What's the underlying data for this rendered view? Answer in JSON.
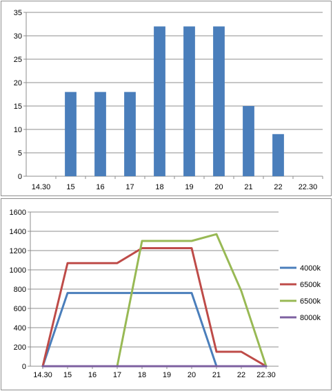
{
  "chart_data": [
    {
      "type": "bar",
      "categories": [
        "14.30",
        "15",
        "16",
        "17",
        "18",
        "19",
        "20",
        "21",
        "22",
        "22.30"
      ],
      "values": [
        0,
        18,
        18,
        18,
        32,
        32,
        32,
        15,
        9,
        0
      ],
      "ylim": [
        0,
        35
      ],
      "yticks": [
        0,
        5,
        10,
        15,
        20,
        25,
        30,
        35
      ],
      "grid": true,
      "colors": {
        "bar": "#4a7ebb",
        "grid": "#8c8c8c",
        "axis": "#8c8c8c"
      }
    },
    {
      "type": "line",
      "x": [
        "14.30",
        "15",
        "16",
        "17",
        "18",
        "19",
        "20",
        "21",
        "22",
        "22.30"
      ],
      "series": [
        {
          "name": "4000k",
          "color": "#4a7ebb",
          "values": [
            0,
            760,
            760,
            760,
            760,
            760,
            760,
            0,
            null,
            null
          ]
        },
        {
          "name": "6500k",
          "color": "#be4b48",
          "values": [
            0,
            1070,
            1070,
            1070,
            1225,
            1225,
            1225,
            150,
            150,
            0
          ]
        },
        {
          "name": "6500k",
          "color": "#98b954",
          "values": [
            null,
            null,
            null,
            0,
            1300,
            1300,
            1300,
            1370,
            780,
            0
          ]
        },
        {
          "name": "8000k",
          "color": "#7d60a0",
          "values": [
            0,
            0,
            0,
            0,
            0,
            0,
            0,
            0,
            0,
            0
          ]
        }
      ],
      "ylim": [
        0,
        1600
      ],
      "yticks": [
        0,
        200,
        400,
        600,
        800,
        1000,
        1200,
        1400,
        1600
      ],
      "grid": true,
      "legend": "right",
      "colors": {
        "grid": "#8c8c8c",
        "axis": "#8c8c8c"
      }
    }
  ]
}
